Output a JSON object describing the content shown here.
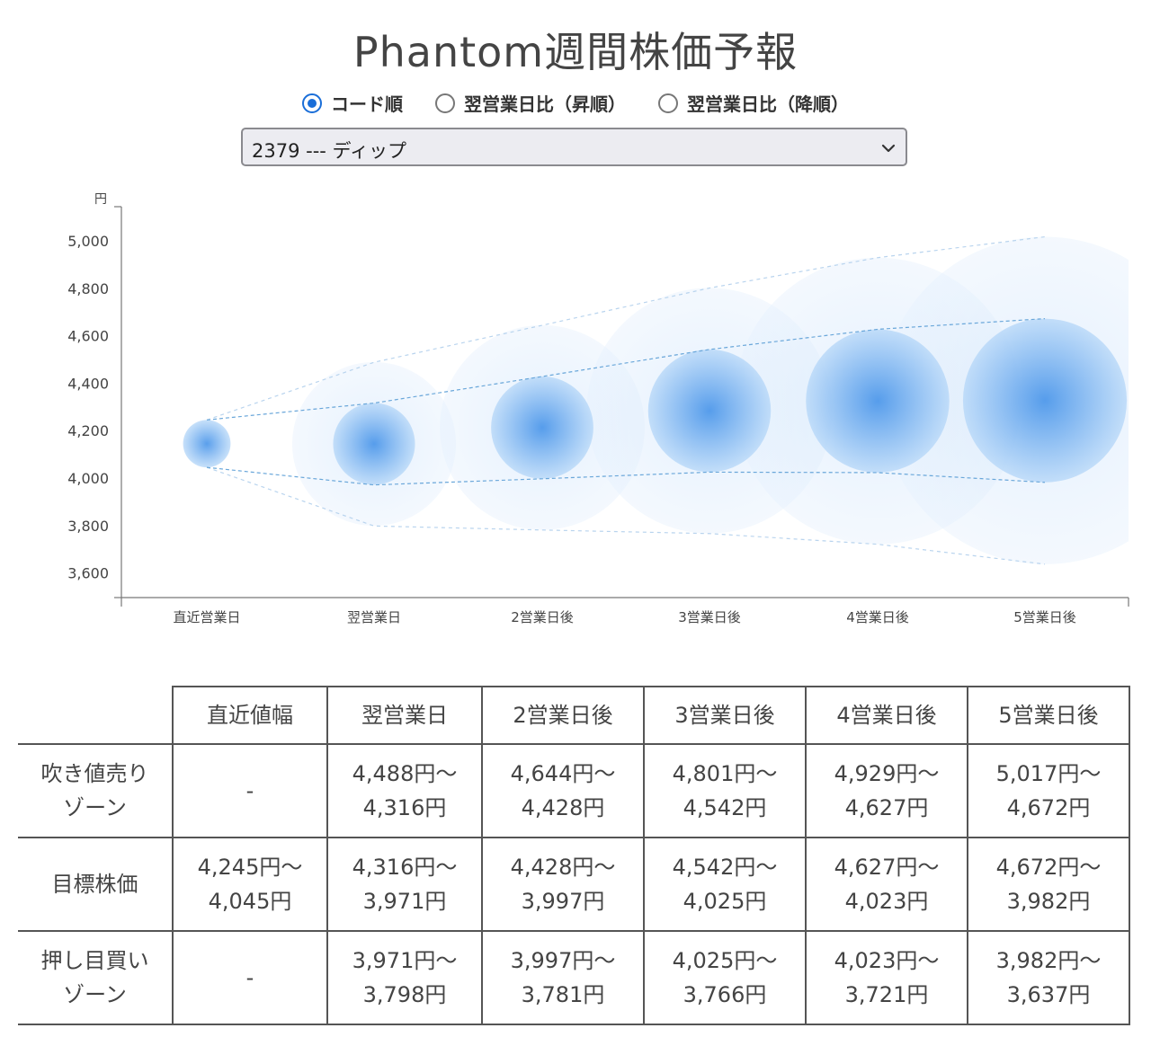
{
  "title": "Phantom週間株価予報",
  "sort": {
    "options": [
      {
        "label": "コード順",
        "checked": true
      },
      {
        "label": "翌営業日比（昇順）",
        "checked": false
      },
      {
        "label": "翌営業日比（降順）",
        "checked": false
      }
    ]
  },
  "stock_select": {
    "value": "2379 --- ディップ"
  },
  "chart_data": {
    "type": "scatter",
    "title": "",
    "ylabel": "円",
    "xlabel": "",
    "ylim": [
      3500,
      5100
    ],
    "yticks": [
      3600,
      3800,
      4000,
      4200,
      4400,
      4600,
      4800,
      5000
    ],
    "ytick_labels": [
      "3,600",
      "3,800",
      "4,000",
      "4,200",
      "4,400",
      "4,600",
      "4,800",
      "5,000"
    ],
    "categories": [
      "直近営業日",
      "翌営業日",
      "2営業日後",
      "3営業日後",
      "4営業日後",
      "5営業日後"
    ],
    "series": [
      {
        "values": [
          4145,
          4144,
          4213,
          4284,
          4325,
          4327
        ]
      }
    ],
    "target_upper": [
      4245,
      4316,
      4428,
      4542,
      4627,
      4672
    ],
    "target_lower": [
      4045,
      3971,
      3997,
      4025,
      4023,
      3982
    ],
    "outer_upper": [
      4245,
      4488,
      4644,
      4801,
      4929,
      5017
    ],
    "outer_lower": [
      4045,
      3798,
      3781,
      3766,
      3721,
      3637
    ],
    "grid": false,
    "legend": "none",
    "colors": {
      "bubble": "#3d8ee8",
      "bubble_light": "#cfe4fb",
      "band": "#6aa7da"
    }
  },
  "table": {
    "headers": [
      "直近値幅",
      "翌営業日",
      "2営業日後",
      "3営業日後",
      "4営業日後",
      "5営業日後"
    ],
    "rows": [
      {
        "label": [
          "吹き値売り",
          "ゾーン"
        ],
        "cells": [
          [
            "-",
            ""
          ],
          [
            "4,488円～",
            "4,316円"
          ],
          [
            "4,644円～",
            "4,428円"
          ],
          [
            "4,801円～",
            "4,542円"
          ],
          [
            "4,929円～",
            "4,627円"
          ],
          [
            "5,017円～",
            "4,672円"
          ]
        ]
      },
      {
        "label": [
          "目標株価",
          ""
        ],
        "cells": [
          [
            "4,245円～",
            "4,045円"
          ],
          [
            "4,316円～",
            "3,971円"
          ],
          [
            "4,428円～",
            "3,997円"
          ],
          [
            "4,542円～",
            "4,025円"
          ],
          [
            "4,627円～",
            "4,023円"
          ],
          [
            "4,672円～",
            "3,982円"
          ]
        ]
      },
      {
        "label": [
          "押し目買い",
          "ゾーン"
        ],
        "cells": [
          [
            "-",
            ""
          ],
          [
            "3,971円～",
            "3,798円"
          ],
          [
            "3,997円～",
            "3,781円"
          ],
          [
            "4,025円～",
            "3,766円"
          ],
          [
            "4,023円～",
            "3,721円"
          ],
          [
            "3,982円～",
            "3,637円"
          ]
        ]
      }
    ]
  }
}
